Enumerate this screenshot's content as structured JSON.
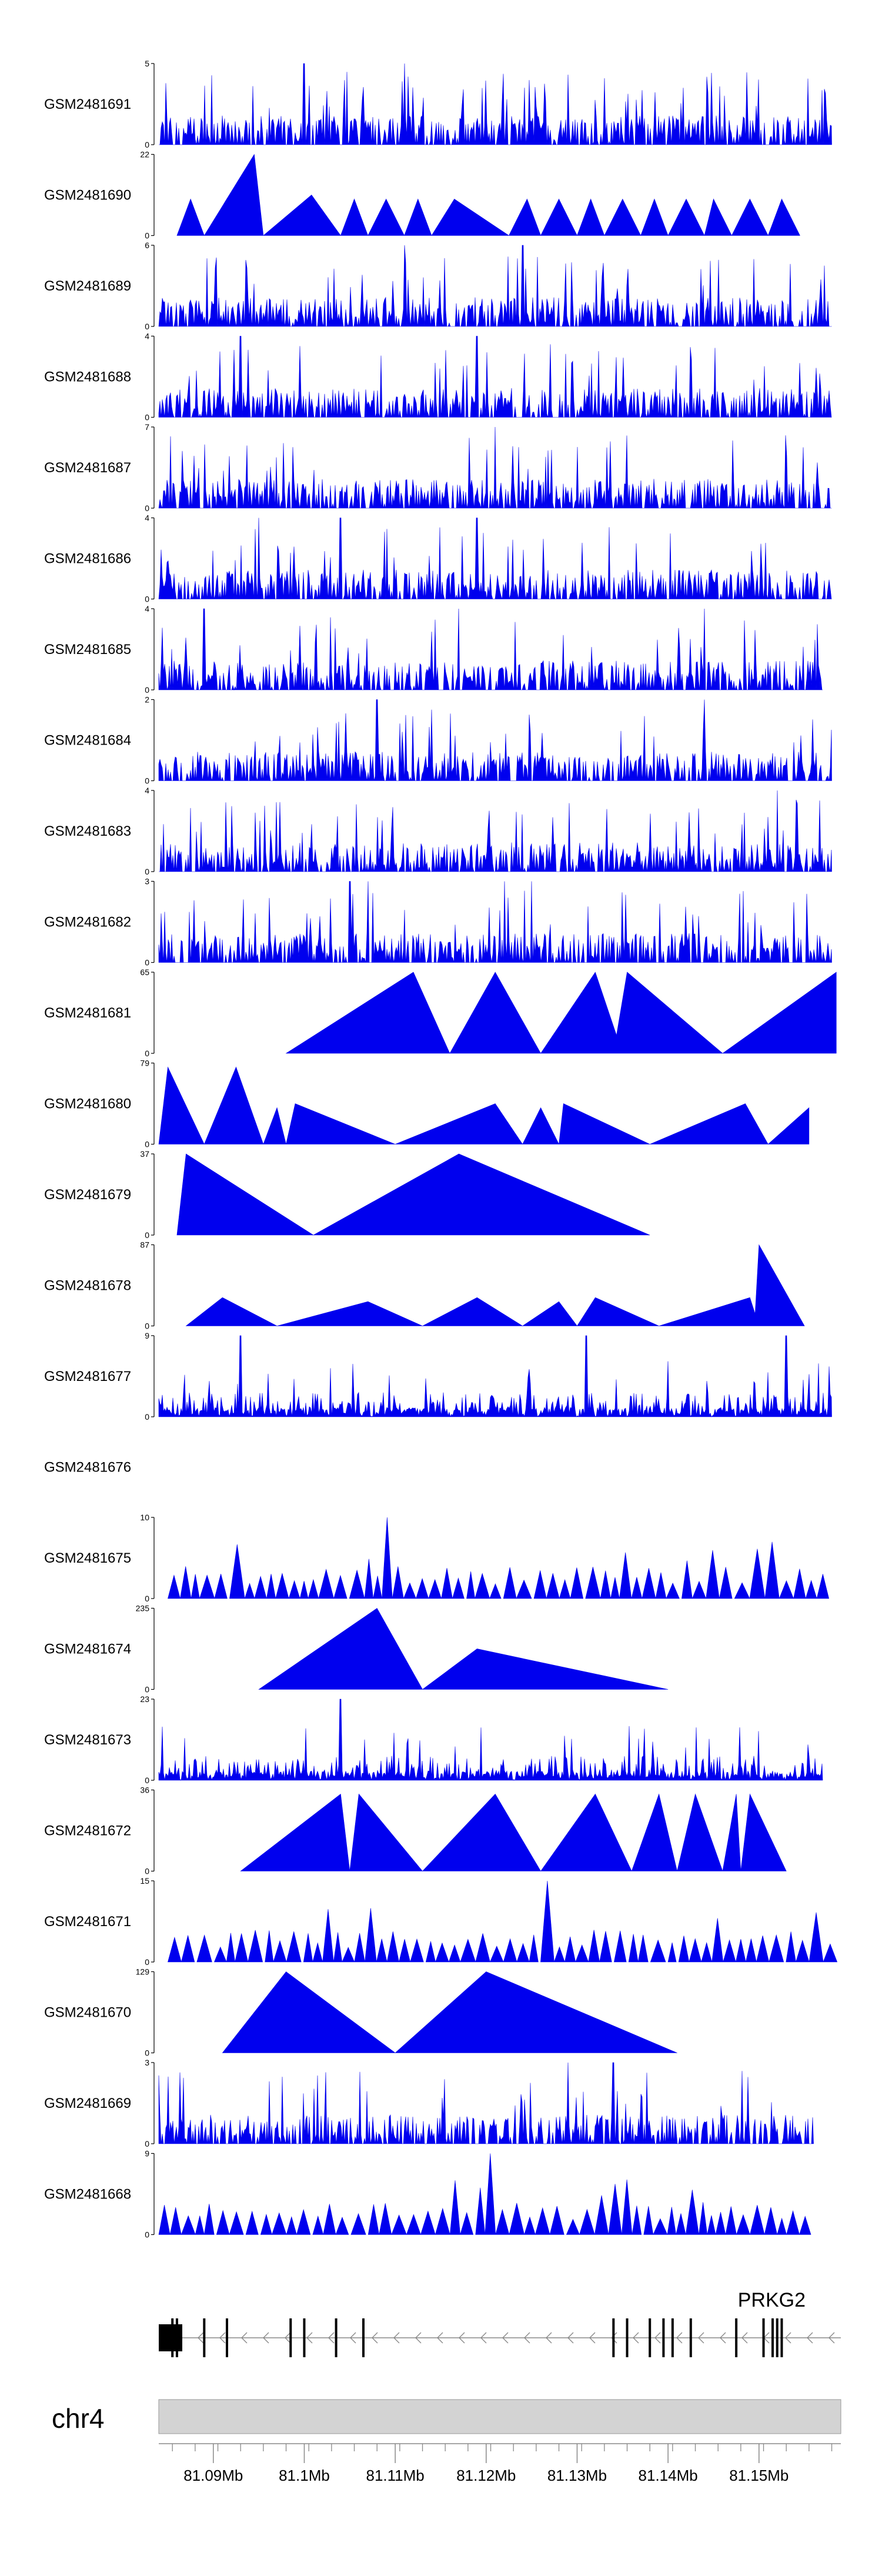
{
  "chart_data": {
    "type": "area",
    "title": "",
    "xlabel": "",
    "xlim": [
      81.084,
      81.159
    ],
    "x_unit": "Mb",
    "series_color": "#0000ee",
    "tracks": [
      {
        "name": "GSM2481691",
        "ymax": "5",
        "ymin": "0",
        "density": "dense",
        "peak_x": [
          81.1,
          81.111
        ],
        "range": [
          81.084,
          81.158
        ]
      },
      {
        "name": "GSM2481690",
        "ymax": "22",
        "ymin": "0",
        "density": "triangles",
        "peaks": [
          [
            81.086,
            81.0875,
            81.089,
            0.45
          ],
          [
            81.089,
            81.0945,
            81.0955,
            1.0
          ],
          [
            81.0955,
            81.1008,
            81.104,
            0.5
          ],
          [
            81.104,
            81.1055,
            81.107,
            0.45
          ],
          [
            81.107,
            81.109,
            81.111,
            0.45
          ],
          [
            81.111,
            81.1125,
            81.114,
            0.45
          ],
          [
            81.114,
            81.1165,
            81.1225,
            0.45
          ],
          [
            81.1225,
            81.1245,
            81.126,
            0.45
          ],
          [
            81.126,
            81.128,
            81.13,
            0.45
          ],
          [
            81.13,
            81.1315,
            81.133,
            0.45
          ],
          [
            81.133,
            81.135,
            81.137,
            0.45
          ],
          [
            81.137,
            81.1385,
            81.14,
            0.45
          ],
          [
            81.14,
            81.142,
            81.144,
            0.45
          ],
          [
            81.144,
            81.145,
            81.147,
            0.45
          ],
          [
            81.147,
            81.149,
            81.151,
            0.45
          ],
          [
            81.151,
            81.1525,
            81.1545,
            0.45
          ]
        ]
      },
      {
        "name": "GSM2481689",
        "ymax": "6",
        "ymin": "0",
        "density": "dense",
        "peak_x": [
          81.111,
          81.124
        ],
        "range": [
          81.084,
          81.158
        ]
      },
      {
        "name": "GSM2481688",
        "ymax": "4",
        "ymin": "0",
        "density": "dense",
        "peak_x": [
          81.093,
          81.119
        ],
        "range": [
          81.084,
          81.158
        ]
      },
      {
        "name": "GSM2481687",
        "ymax": "7",
        "ymin": "0",
        "density": "dense",
        "peak_x": [
          81.121
        ],
        "range": [
          81.084,
          81.158
        ]
      },
      {
        "name": "GSM2481686",
        "ymax": "4",
        "ymin": "0",
        "density": "dense",
        "peak_x": [
          81.095,
          81.104,
          81.119
        ],
        "range": [
          81.084,
          81.158
        ]
      },
      {
        "name": "GSM2481685",
        "ymax": "4",
        "ymin": "0",
        "density": "dense",
        "peak_x": [
          81.089,
          81.117,
          81.144
        ],
        "range": [
          81.084,
          81.157
        ]
      },
      {
        "name": "GSM2481684",
        "ymax": "2",
        "ymin": "0",
        "density": "dense",
        "peak_x": [
          81.108,
          81.144
        ],
        "range": [
          81.084,
          81.158
        ]
      },
      {
        "name": "GSM2481683",
        "ymax": "4",
        "ymin": "0",
        "density": "dense",
        "peak_x": [
          81.152
        ],
        "range": [
          81.084,
          81.158
        ]
      },
      {
        "name": "GSM2481682",
        "ymax": "3",
        "ymin": "0",
        "density": "dense",
        "peak_x": [
          81.105,
          81.107,
          81.122,
          81.125
        ],
        "range": [
          81.084,
          81.158
        ]
      },
      {
        "name": "GSM2481681",
        "ymax": "65",
        "ymin": "0",
        "density": "triangles",
        "peaks": [
          [
            81.098,
            81.112,
            81.116,
            1.0
          ],
          [
            81.116,
            81.121,
            81.126,
            1.0
          ],
          [
            81.126,
            81.132,
            81.135,
            1.0
          ],
          [
            81.134,
            81.1355,
            81.146,
            1.0
          ],
          [
            81.146,
            81.1585,
            81.1585,
            1.0
          ]
        ]
      },
      {
        "name": "GSM2481680",
        "ymax": "79",
        "ymin": "0",
        "density": "triangles",
        "peaks": [
          [
            81.084,
            81.085,
            81.089,
            0.95
          ],
          [
            81.089,
            81.0925,
            81.0955,
            0.95
          ],
          [
            81.0955,
            81.097,
            81.098,
            0.45
          ],
          [
            81.098,
            81.099,
            81.11,
            0.5
          ],
          [
            81.11,
            81.121,
            81.124,
            0.5
          ],
          [
            81.124,
            81.126,
            81.128,
            0.45
          ],
          [
            81.128,
            81.1285,
            81.138,
            0.5
          ],
          [
            81.138,
            81.1485,
            81.151,
            0.5
          ],
          [
            81.151,
            81.1555,
            81.1555,
            0.45
          ]
        ]
      },
      {
        "name": "GSM2481679",
        "ymax": "37",
        "ymin": "0",
        "density": "triangles",
        "peaks": [
          [
            81.086,
            81.087,
            81.101,
            1.0
          ],
          [
            81.101,
            81.117,
            81.138,
            1.0
          ]
        ]
      },
      {
        "name": "GSM2481678",
        "ymax": "87",
        "ymin": "0",
        "density": "triangles",
        "peaks": [
          [
            81.087,
            81.091,
            81.097,
            0.35
          ],
          [
            81.097,
            81.107,
            81.113,
            0.3
          ],
          [
            81.113,
            81.119,
            81.124,
            0.35
          ],
          [
            81.124,
            81.128,
            81.13,
            0.3
          ],
          [
            81.13,
            81.132,
            81.139,
            0.35
          ],
          [
            81.139,
            81.149,
            81.15,
            0.35
          ],
          [
            81.1495,
            81.15,
            81.155,
            1.0
          ]
        ]
      },
      {
        "name": "GSM2481677",
        "ymax": "9",
        "ymin": "0",
        "density": "sparse",
        "peak_x": [
          81.093,
          81.131,
          81.153
        ],
        "range": [
          81.084,
          81.158
        ]
      },
      {
        "name": "GSM2481676",
        "ymax": "",
        "ymin": "",
        "density": "empty"
      },
      {
        "name": "GSM2481675",
        "ymax": "10",
        "ymin": "0",
        "density": "triangles_small",
        "peak_x": [
          81.109
        ],
        "range": [
          81.085,
          81.158
        ]
      },
      {
        "name": "GSM2481674",
        "ymax": "235",
        "ymin": "0",
        "density": "triangles",
        "peaks": [
          [
            81.095,
            81.108,
            81.113,
            1.0
          ],
          [
            81.113,
            81.119,
            81.14,
            0.5
          ]
        ]
      },
      {
        "name": "GSM2481673",
        "ymax": "23",
        "ymin": "0",
        "density": "sparse",
        "peak_x": [
          81.104
        ],
        "range": [
          81.084,
          81.157
        ]
      },
      {
        "name": "GSM2481672",
        "ymax": "36",
        "ymin": "0",
        "density": "triangles",
        "peaks": [
          [
            81.093,
            81.104,
            81.105,
            0.95
          ],
          [
            81.105,
            81.106,
            81.113,
            0.95
          ],
          [
            81.113,
            81.121,
            81.126,
            0.95
          ],
          [
            81.126,
            81.132,
            81.136,
            0.95
          ],
          [
            81.136,
            81.139,
            81.141,
            0.95
          ],
          [
            81.141,
            81.143,
            81.146,
            0.95
          ],
          [
            81.146,
            81.1475,
            81.148,
            0.95
          ],
          [
            81.148,
            81.149,
            81.153,
            0.95
          ]
        ]
      },
      {
        "name": "GSM2481671",
        "ymax": "15",
        "ymin": "0",
        "density": "triangles_small",
        "peak_x": [
          81.127
        ],
        "range": [
          81.085,
          81.158
        ]
      },
      {
        "name": "GSM2481670",
        "ymax": "129",
        "ymin": "0",
        "density": "triangles",
        "peaks": [
          [
            81.091,
            81.098,
            81.11,
            1.0
          ],
          [
            81.11,
            81.12,
            81.141,
            1.0
          ]
        ]
      },
      {
        "name": "GSM2481669",
        "ymax": "3",
        "ymin": "0",
        "density": "dense",
        "peak_x": [
          81.129,
          81.134
        ],
        "range": [
          81.084,
          81.156
        ]
      },
      {
        "name": "GSM2481668",
        "ymax": "9",
        "ymin": "0",
        "density": "triangles_small",
        "peak_x": [
          81.12
        ],
        "range": [
          81.084,
          81.156
        ]
      }
    ],
    "gene_track": {
      "gene_name": "PRKG2",
      "strand": "-",
      "exons_mb": [
        81.0855,
        81.086,
        81.089,
        81.0915,
        81.0985,
        81.1,
        81.1035,
        81.1065,
        81.134,
        81.1355,
        81.138,
        81.1395,
        81.1405,
        81.1425,
        81.1475,
        81.1505,
        81.1515,
        81.152,
        81.1525
      ],
      "range": [
        81.084,
        81.159
      ]
    },
    "genome_axis": {
      "chromosome": "chr4",
      "ticks": [
        "81.09Mb",
        "81.1Mb",
        "81.11Mb",
        "81.12Mb",
        "81.13Mb",
        "81.14Mb",
        "81.15Mb"
      ],
      "tick_values": [
        81.09,
        81.1,
        81.11,
        81.12,
        81.13,
        81.14,
        81.15
      ]
    }
  }
}
